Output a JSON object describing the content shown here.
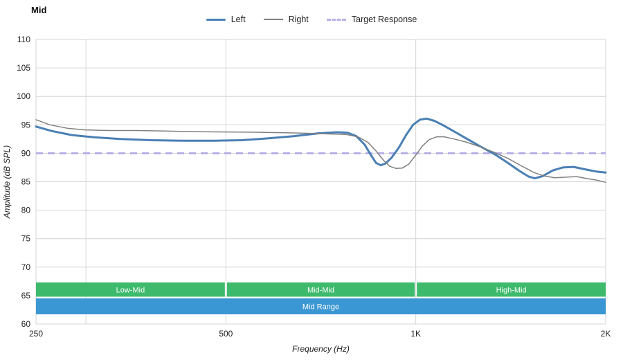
{
  "title": "Mid",
  "legend": [
    {
      "label": "Left",
      "color": "#4a7fb5",
      "style": "solid",
      "width": 3
    },
    {
      "label": "Right",
      "color": "#808080",
      "style": "solid",
      "width": 2
    },
    {
      "label": "Target Response",
      "color": "#b8b0e8",
      "style": "dashed",
      "width": 3
    }
  ],
  "chart_data": {
    "type": "line",
    "title": "Mid",
    "xlabel": "Frequency (Hz)",
    "ylabel": "Amplitude (dB SPL)",
    "x_scale": "log",
    "x_range": [
      250,
      2000
    ],
    "y_range": [
      60,
      110
    ],
    "grid": true,
    "grid_color": "#d6d6d6",
    "legend_position": "top-center",
    "y_ticks": [
      110,
      105,
      100,
      95,
      90,
      85,
      80,
      75,
      70,
      65,
      60
    ],
    "x_ticks": [
      {
        "value": 250,
        "label": "250"
      },
      {
        "value": 500,
        "label": "500"
      },
      {
        "value": 1000,
        "label": "1K"
      },
      {
        "value": 2000,
        "label": "2K"
      }
    ],
    "x_gridlines": [
      300,
      500,
      1000,
      2000
    ],
    "target": {
      "name": "Target Response",
      "value": 90,
      "color": "#b8b0e8",
      "width": 3
    },
    "series": [
      {
        "name": "Left",
        "color": "#4a7fb5",
        "width": 3,
        "points": [
          [
            250,
            94.7
          ],
          [
            265,
            93.9
          ],
          [
            285,
            93.2
          ],
          [
            310,
            92.8
          ],
          [
            340,
            92.5
          ],
          [
            380,
            92.3
          ],
          [
            430,
            92.2
          ],
          [
            480,
            92.2
          ],
          [
            530,
            92.3
          ],
          [
            580,
            92.6
          ],
          [
            640,
            93.0
          ],
          [
            700,
            93.5
          ],
          [
            750,
            93.7
          ],
          [
            780,
            93.6
          ],
          [
            805,
            93.0
          ],
          [
            830,
            91.5
          ],
          [
            850,
            89.6
          ],
          [
            865,
            88.3
          ],
          [
            880,
            87.9
          ],
          [
            895,
            88.2
          ],
          [
            915,
            89.2
          ],
          [
            940,
            91.0
          ],
          [
            965,
            93.2
          ],
          [
            990,
            95.0
          ],
          [
            1015,
            95.9
          ],
          [
            1040,
            96.1
          ],
          [
            1070,
            95.7
          ],
          [
            1110,
            94.8
          ],
          [
            1160,
            93.6
          ],
          [
            1220,
            92.2
          ],
          [
            1280,
            90.9
          ],
          [
            1340,
            89.7
          ],
          [
            1400,
            88.3
          ],
          [
            1460,
            86.9
          ],
          [
            1510,
            85.9
          ],
          [
            1545,
            85.6
          ],
          [
            1590,
            86.0
          ],
          [
            1650,
            87.0
          ],
          [
            1710,
            87.5
          ],
          [
            1780,
            87.6
          ],
          [
            1850,
            87.2
          ],
          [
            1930,
            86.8
          ],
          [
            2000,
            86.6
          ]
        ]
      },
      {
        "name": "Right",
        "color": "#808080",
        "width": 1.5,
        "points": [
          [
            250,
            95.9
          ],
          [
            263,
            95.0
          ],
          [
            280,
            94.4
          ],
          [
            300,
            94.1
          ],
          [
            325,
            94.0
          ],
          [
            360,
            94.0
          ],
          [
            400,
            93.9
          ],
          [
            450,
            93.8
          ],
          [
            500,
            93.75
          ],
          [
            560,
            93.7
          ],
          [
            620,
            93.6
          ],
          [
            680,
            93.5
          ],
          [
            730,
            93.4
          ],
          [
            775,
            93.3
          ],
          [
            810,
            92.9
          ],
          [
            840,
            91.9
          ],
          [
            865,
            90.4
          ],
          [
            890,
            88.7
          ],
          [
            910,
            87.7
          ],
          [
            930,
            87.35
          ],
          [
            952,
            87.4
          ],
          [
            975,
            88.1
          ],
          [
            1000,
            89.7
          ],
          [
            1025,
            91.3
          ],
          [
            1050,
            92.4
          ],
          [
            1080,
            92.9
          ],
          [
            1110,
            92.9
          ],
          [
            1150,
            92.5
          ],
          [
            1200,
            92.0
          ],
          [
            1260,
            91.2
          ],
          [
            1330,
            90.2
          ],
          [
            1400,
            89.1
          ],
          [
            1470,
            87.8
          ],
          [
            1540,
            86.6
          ],
          [
            1600,
            86.0
          ],
          [
            1660,
            85.7
          ],
          [
            1730,
            85.8
          ],
          [
            1800,
            85.9
          ],
          [
            1860,
            85.6
          ],
          [
            1930,
            85.3
          ],
          [
            2000,
            84.9
          ]
        ]
      }
    ],
    "bands": [
      {
        "label": "Low-Mid",
        "x": [
          250,
          500
        ],
        "y": [
          64.8,
          67.3
        ],
        "color": "#3eba6d"
      },
      {
        "label": "Mid-Mid",
        "x": [
          500,
          1000
        ],
        "y": [
          64.8,
          67.3
        ],
        "color": "#3eba6d"
      },
      {
        "label": "High-Mid",
        "x": [
          1000,
          2000
        ],
        "y": [
          64.8,
          67.3
        ],
        "color": "#3eba6d"
      },
      {
        "label": "Mid Range",
        "x": [
          250,
          2000
        ],
        "y": [
          61.7,
          64.5
        ],
        "color": "#3b97d3"
      }
    ]
  }
}
